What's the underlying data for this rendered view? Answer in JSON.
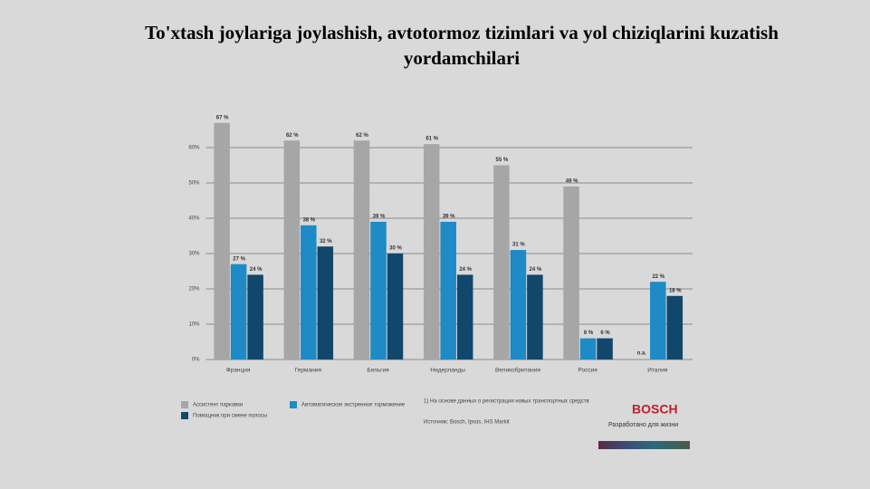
{
  "chart_data": {
    "type": "bar",
    "title": "To'xtash joylariga joylashish, avtotormoz tizimlari va yol chiziqlarini kuzatish yordamchilari",
    "categories": [
      "Франция",
      "Германия",
      "Бельгия",
      "Нидерланды",
      "Великобритания",
      "Россия",
      "Италия"
    ],
    "series": [
      {
        "name": "Ассистент парковки",
        "color": "#a6a6a6",
        "values": [
          67,
          62,
          62,
          61,
          55,
          49,
          null
        ],
        "value_labels": [
          "67 %",
          "62 %",
          "62 %",
          "61 %",
          "55 %",
          "49 %",
          "n.a."
        ]
      },
      {
        "name": "Автоматическое экстренное торможение",
        "color": "#1e8ac6",
        "values": [
          27,
          38,
          39,
          39,
          31,
          6,
          22
        ],
        "value_labels": [
          "27 %",
          "38 %",
          "39 %",
          "39 %",
          "31 %",
          "6 %",
          "22 %"
        ]
      },
      {
        "name": "Помощник при смене полосы",
        "color": "#10476b",
        "values": [
          24,
          32,
          30,
          24,
          24,
          6,
          18
        ],
        "value_labels": [
          "24 %",
          "32 %",
          "30 %",
          "24 %",
          "24 %",
          "6 %",
          "18 %"
        ]
      }
    ],
    "ylim": [
      0,
      70
    ],
    "yticks": [
      {
        "value": 0,
        "label": "0%"
      },
      {
        "value": 10,
        "label": "10%"
      },
      {
        "value": 20,
        "label": "20%"
      },
      {
        "value": 30,
        "label": "30%"
      },
      {
        "value": 40,
        "label": "40%"
      },
      {
        "value": 50,
        "label": "50%"
      },
      {
        "value": 60,
        "label": "60%"
      }
    ],
    "grid": true
  },
  "footer": {
    "note": "1) На основе данных о регистрации новых транспортных средств",
    "source": "Источник: Bosch, Ipsos, IHS Markit",
    "logo": "BOSCH",
    "slogan": "Разработано для жизни"
  }
}
